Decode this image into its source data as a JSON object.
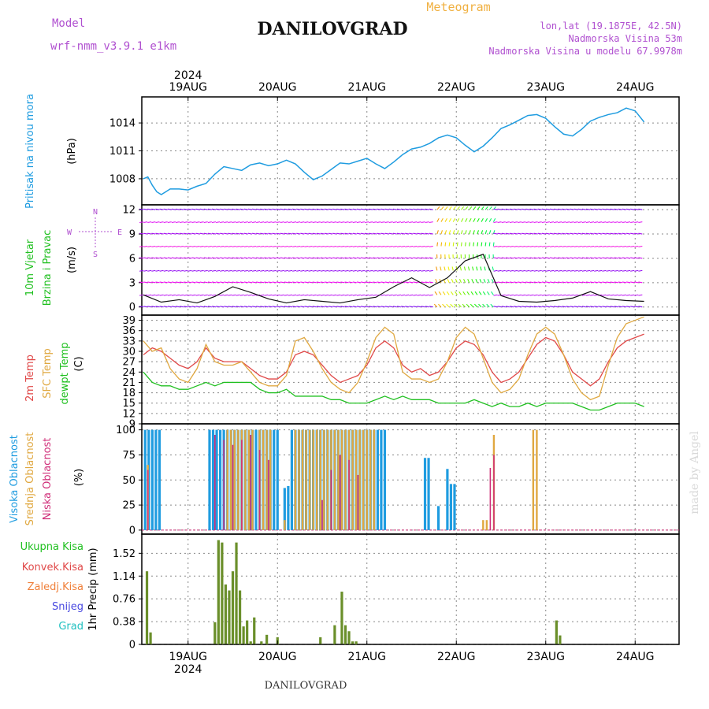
{
  "header": {
    "model_label": "Model",
    "model_name": "wrf-nmm_v3.9.1 e1km",
    "station": "DANILOVGRAD",
    "meteogram_label": "Meteogram",
    "lonlat": "lon,lat (19.1875E, 42.5N)",
    "elevation": "Nadmorska Visina 53m",
    "model_elevation": "Nadmorska Visina u modelu 67.9978m",
    "footer_station": "DANILOVGRAD",
    "watermark": "made by Angel"
  },
  "colors": {
    "pressure": "#1f9ce0",
    "temp2m": "#e04848",
    "sfc": "#e0a840",
    "dewpt": "#20c020",
    "high_cloud": "#1f9ce0",
    "mid_cloud": "#e0a840",
    "low_cloud": "#d0307a",
    "precip": "#6a8f2a",
    "header_purple": "#b050d0",
    "header_orange": "#f0b040"
  },
  "time_axis": {
    "year": "2024",
    "days": [
      "19AUG",
      "20AUG",
      "21AUG",
      "22AUG",
      "23AUG",
      "24AUG"
    ]
  },
  "chart_data": [
    {
      "type": "line",
      "id": "pressure",
      "ylabel": [
        "Pritisak na nivou mora",
        "(hPa)"
      ],
      "yticks": [
        1008,
        1011,
        1014
      ],
      "ylim": [
        1005.2,
        1016.8
      ],
      "x": [
        0,
        0.05,
        0.1,
        0.15,
        0.2,
        0.25,
        0.3,
        0.4,
        0.5,
        0.6,
        0.7,
        0.8,
        0.9,
        1,
        1.1,
        1.2,
        1.3,
        1.4,
        1.5,
        1.6,
        1.7,
        1.8,
        1.9,
        2,
        2.1,
        2.2,
        2.3,
        2.4,
        2.5,
        2.6,
        2.7,
        2.8,
        2.9,
        3,
        3.1,
        3.2,
        3.3,
        3.4,
        3.5,
        3.6,
        3.7,
        3.8,
        3.9,
        4,
        4.1,
        4.2,
        4.3,
        4.4,
        4.5,
        4.6,
        4.7,
        4.8,
        4.9,
        5,
        5.1,
        5.2,
        5.3,
        5.4,
        5.5,
        5.6
      ],
      "series": [
        {
          "values": [
            1008.0,
            1008.2,
            1007.3,
            1006.6,
            1006.3,
            1006.6,
            1006.9,
            1006.9,
            1006.8,
            1007.2,
            1007.5,
            1008.5,
            1009.3,
            1009.1,
            1008.9,
            1009.5,
            1009.7,
            1009.4,
            1009.6,
            1010.0,
            1009.6,
            1008.7,
            1007.9,
            1008.3,
            1009.0,
            1009.7,
            1009.6,
            1009.9,
            1010.2,
            1009.6,
            1009.1,
            1009.8,
            1010.6,
            1011.2,
            1011.4,
            1011.8,
            1012.4,
            1012.7,
            1012.4,
            1011.6,
            1010.9,
            1011.5,
            1012.4,
            1013.4,
            1013.8,
            1014.3,
            1014.8,
            1014.9,
            1014.5,
            1013.6,
            1012.8,
            1012.6,
            1013.3,
            1014.2,
            1014.6,
            1014.9,
            1015.1,
            1015.6,
            1015.3,
            1014.1
          ]
        }
      ]
    },
    {
      "type": "line",
      "id": "wind",
      "ylabel": [
        "10m Vjetar",
        "Brzina i Pravac",
        "(m/s)"
      ],
      "compass": [
        "N",
        "W",
        "E",
        "S"
      ],
      "yticks": [
        0,
        3,
        6,
        9,
        12
      ],
      "ylim": [
        -1,
        12.6
      ],
      "x": [
        0,
        0.2,
        0.4,
        0.6,
        0.8,
        1,
        1.2,
        1.4,
        1.6,
        1.8,
        2,
        2.2,
        2.4,
        2.6,
        2.8,
        3,
        3.2,
        3.4,
        3.6,
        3.8,
        4,
        4.2,
        4.4,
        4.6,
        4.8,
        5,
        5.2,
        5.4,
        5.6
      ],
      "series": [
        {
          "name": "wind speed",
          "values": [
            1.5,
            0.6,
            0.9,
            0.5,
            1.3,
            2.5,
            1.8,
            1.0,
            0.5,
            0.9,
            0.7,
            0.5,
            0.9,
            1.2,
            2.5,
            3.6,
            2.4,
            3.6,
            5.7,
            6.5,
            1.4,
            0.7,
            0.6,
            0.8,
            1.1,
            1.9,
            1.0,
            0.8,
            0.7
          ]
        }
      ]
    },
    {
      "type": "line",
      "id": "temperature",
      "ylabel": [
        "2m Temp",
        "SFC Temp",
        "dewpt Temp",
        "(C)"
      ],
      "yticks": [
        9,
        12,
        15,
        18,
        21,
        24,
        27,
        30,
        33,
        36,
        39
      ],
      "ylim": [
        9,
        40.5
      ],
      "x": [
        0,
        0.1,
        0.2,
        0.3,
        0.4,
        0.5,
        0.6,
        0.7,
        0.8,
        0.9,
        1,
        1.1,
        1.2,
        1.3,
        1.4,
        1.5,
        1.6,
        1.7,
        1.8,
        1.9,
        2,
        2.1,
        2.2,
        2.3,
        2.4,
        2.5,
        2.6,
        2.7,
        2.8,
        2.9,
        3,
        3.1,
        3.2,
        3.3,
        3.4,
        3.5,
        3.6,
        3.7,
        3.8,
        3.9,
        4,
        4.1,
        4.2,
        4.3,
        4.4,
        4.5,
        4.6,
        4.7,
        4.8,
        4.9,
        5,
        5.1,
        5.2,
        5.3,
        5.4,
        5.5,
        5.6
      ],
      "series": [
        {
          "name": "2m Temp",
          "values": [
            29,
            31,
            30,
            28,
            26,
            25,
            27,
            31,
            28,
            27,
            27,
            27,
            25,
            23,
            22,
            22,
            24,
            29,
            30,
            29,
            26,
            23,
            21,
            22,
            23,
            26,
            31,
            33,
            31,
            26,
            24,
            25,
            23,
            24,
            27,
            31,
            33,
            32,
            29,
            24,
            21,
            22,
            24,
            28,
            32,
            34,
            33,
            29,
            24,
            22,
            20,
            22,
            27,
            31,
            33,
            34,
            35
          ]
        },
        {
          "name": "SFC Temp",
          "values": [
            33,
            30,
            31,
            25,
            22,
            21,
            25,
            32,
            27,
            26,
            26,
            27,
            24,
            21,
            20,
            20,
            23,
            33,
            34,
            30,
            25,
            21,
            19,
            18,
            21,
            27,
            34,
            37,
            35,
            24,
            22,
            22,
            21,
            22,
            27,
            34,
            37,
            35,
            28,
            21,
            18,
            19,
            22,
            29,
            35,
            37,
            35,
            29,
            22,
            18,
            16,
            17,
            26,
            34,
            38,
            39,
            40
          ]
        },
        {
          "name": "dewpt Temp",
          "values": [
            24,
            21,
            20,
            20,
            19,
            19,
            20,
            21,
            20,
            21,
            21,
            21,
            21,
            19,
            18,
            18,
            19,
            17,
            17,
            17,
            17,
            16,
            16,
            15,
            15,
            15,
            16,
            17,
            16,
            17,
            16,
            16,
            16,
            15,
            15,
            15,
            15,
            16,
            15,
            14,
            15,
            14,
            14,
            15,
            14,
            15,
            15,
            15,
            15,
            14,
            13,
            13,
            14,
            15,
            15,
            15,
            14
          ]
        }
      ]
    },
    {
      "type": "bar",
      "id": "clouds",
      "ylabel": [
        "Visoka Oblacnost",
        "Srednja Oblacnost",
        "Niska Oblacnost",
        "(%)"
      ],
      "yticks": [
        0,
        25,
        50,
        75,
        100
      ],
      "ylim": [
        -4,
        106
      ],
      "series": [
        {
          "name": "Visoka Oblacnost",
          "x": [
            0.02,
            0.06,
            0.1,
            0.14,
            0.18,
            0.74,
            0.78,
            0.82,
            0.86,
            0.9,
            0.94,
            0.98,
            1.02,
            1.06,
            1.1,
            1.14,
            1.18,
            1.22,
            1.26,
            1.3,
            1.34,
            1.38,
            1.42,
            1.46,
            1.5,
            1.58,
            1.62,
            1.66,
            1.7,
            1.74,
            1.78,
            1.82,
            1.86,
            1.9,
            1.94,
            1.98,
            2.02,
            2.06,
            2.1,
            2.14,
            2.18,
            2.22,
            2.26,
            2.3,
            2.34,
            2.38,
            2.42,
            2.46,
            2.5,
            2.54,
            2.58,
            2.62,
            2.66,
            2.7,
            3.15,
            3.19,
            3.3,
            3.4,
            3.44,
            3.48
          ],
          "values": [
            100,
            100,
            100,
            100,
            100,
            100,
            100,
            100,
            100,
            100,
            100,
            100,
            100,
            100,
            100,
            100,
            100,
            100,
            100,
            100,
            100,
            100,
            100,
            100,
            100,
            42,
            44,
            100,
            100,
            100,
            100,
            100,
            100,
            100,
            100,
            100,
            100,
            100,
            100,
            100,
            100,
            100,
            100,
            100,
            100,
            100,
            100,
            100,
            100,
            100,
            100,
            100,
            100,
            100,
            72,
            72,
            24,
            61,
            46,
            46
          ]
        },
        {
          "name": "Srednja Oblacnost",
          "x": [
            0.05,
            0.94,
            0.98,
            1.02,
            1.06,
            1.1,
            1.14,
            1.18,
            1.22,
            1.3,
            1.34,
            1.38,
            1.42,
            1.58,
            1.7,
            1.74,
            1.78,
            1.82,
            1.86,
            1.9,
            1.94,
            1.98,
            2.02,
            2.06,
            2.1,
            2.14,
            2.18,
            2.22,
            2.26,
            2.3,
            2.34,
            2.38,
            2.42,
            2.46,
            2.5,
            2.54,
            2.58,
            3.8,
            3.84,
            3.92,
            4.36,
            4.4
          ],
          "values": [
            65,
            100,
            100,
            100,
            100,
            100,
            100,
            100,
            100,
            100,
            100,
            100,
            100,
            10,
            100,
            100,
            100,
            100,
            100,
            100,
            100,
            100,
            100,
            100,
            100,
            100,
            100,
            100,
            100,
            100,
            100,
            100,
            100,
            100,
            100,
            100,
            100,
            10,
            10,
            95,
            100,
            100
          ]
        },
        {
          "name": "Niska Oblacnost",
          "x": [
            0.05,
            0.8,
            0.9,
            1.0,
            1.1,
            1.2,
            1.3,
            1.4,
            2.0,
            2.1,
            2.2,
            2.3,
            2.4,
            3.88,
            3.92
          ],
          "values": [
            60,
            95,
            90,
            85,
            90,
            95,
            80,
            70,
            30,
            60,
            75,
            70,
            55,
            62,
            75
          ]
        }
      ]
    },
    {
      "type": "bar",
      "id": "precip",
      "ylabel": [
        "1hr Precip (mm)"
      ],
      "legend": [
        "Ukupna Kisa",
        "Konvek.Kisa",
        "Zaledj.Kisa",
        "Snijeg",
        "Grad"
      ],
      "yticks": [
        0,
        0.38,
        0.76,
        1.14,
        1.52
      ],
      "ylim": [
        0,
        1.84
      ],
      "x": [
        0.04,
        0.08,
        0.8,
        0.84,
        0.88,
        0.92,
        0.96,
        1.0,
        1.04,
        1.08,
        1.12,
        1.16,
        1.2,
        1.24,
        1.32,
        1.38,
        1.5,
        1.98,
        2.14,
        2.22,
        2.26,
        2.3,
        2.34,
        2.38,
        4.62,
        4.66
      ],
      "values": [
        1.22,
        0.2,
        0.37,
        1.74,
        1.7,
        1.0,
        0.9,
        1.22,
        1.7,
        0.9,
        0.3,
        0.4,
        0.05,
        0.45,
        0.05,
        0.16,
        0.12,
        0.12,
        0.32,
        0.88,
        0.32,
        0.22,
        0.05,
        0.05,
        0.4,
        0.15
      ]
    }
  ]
}
